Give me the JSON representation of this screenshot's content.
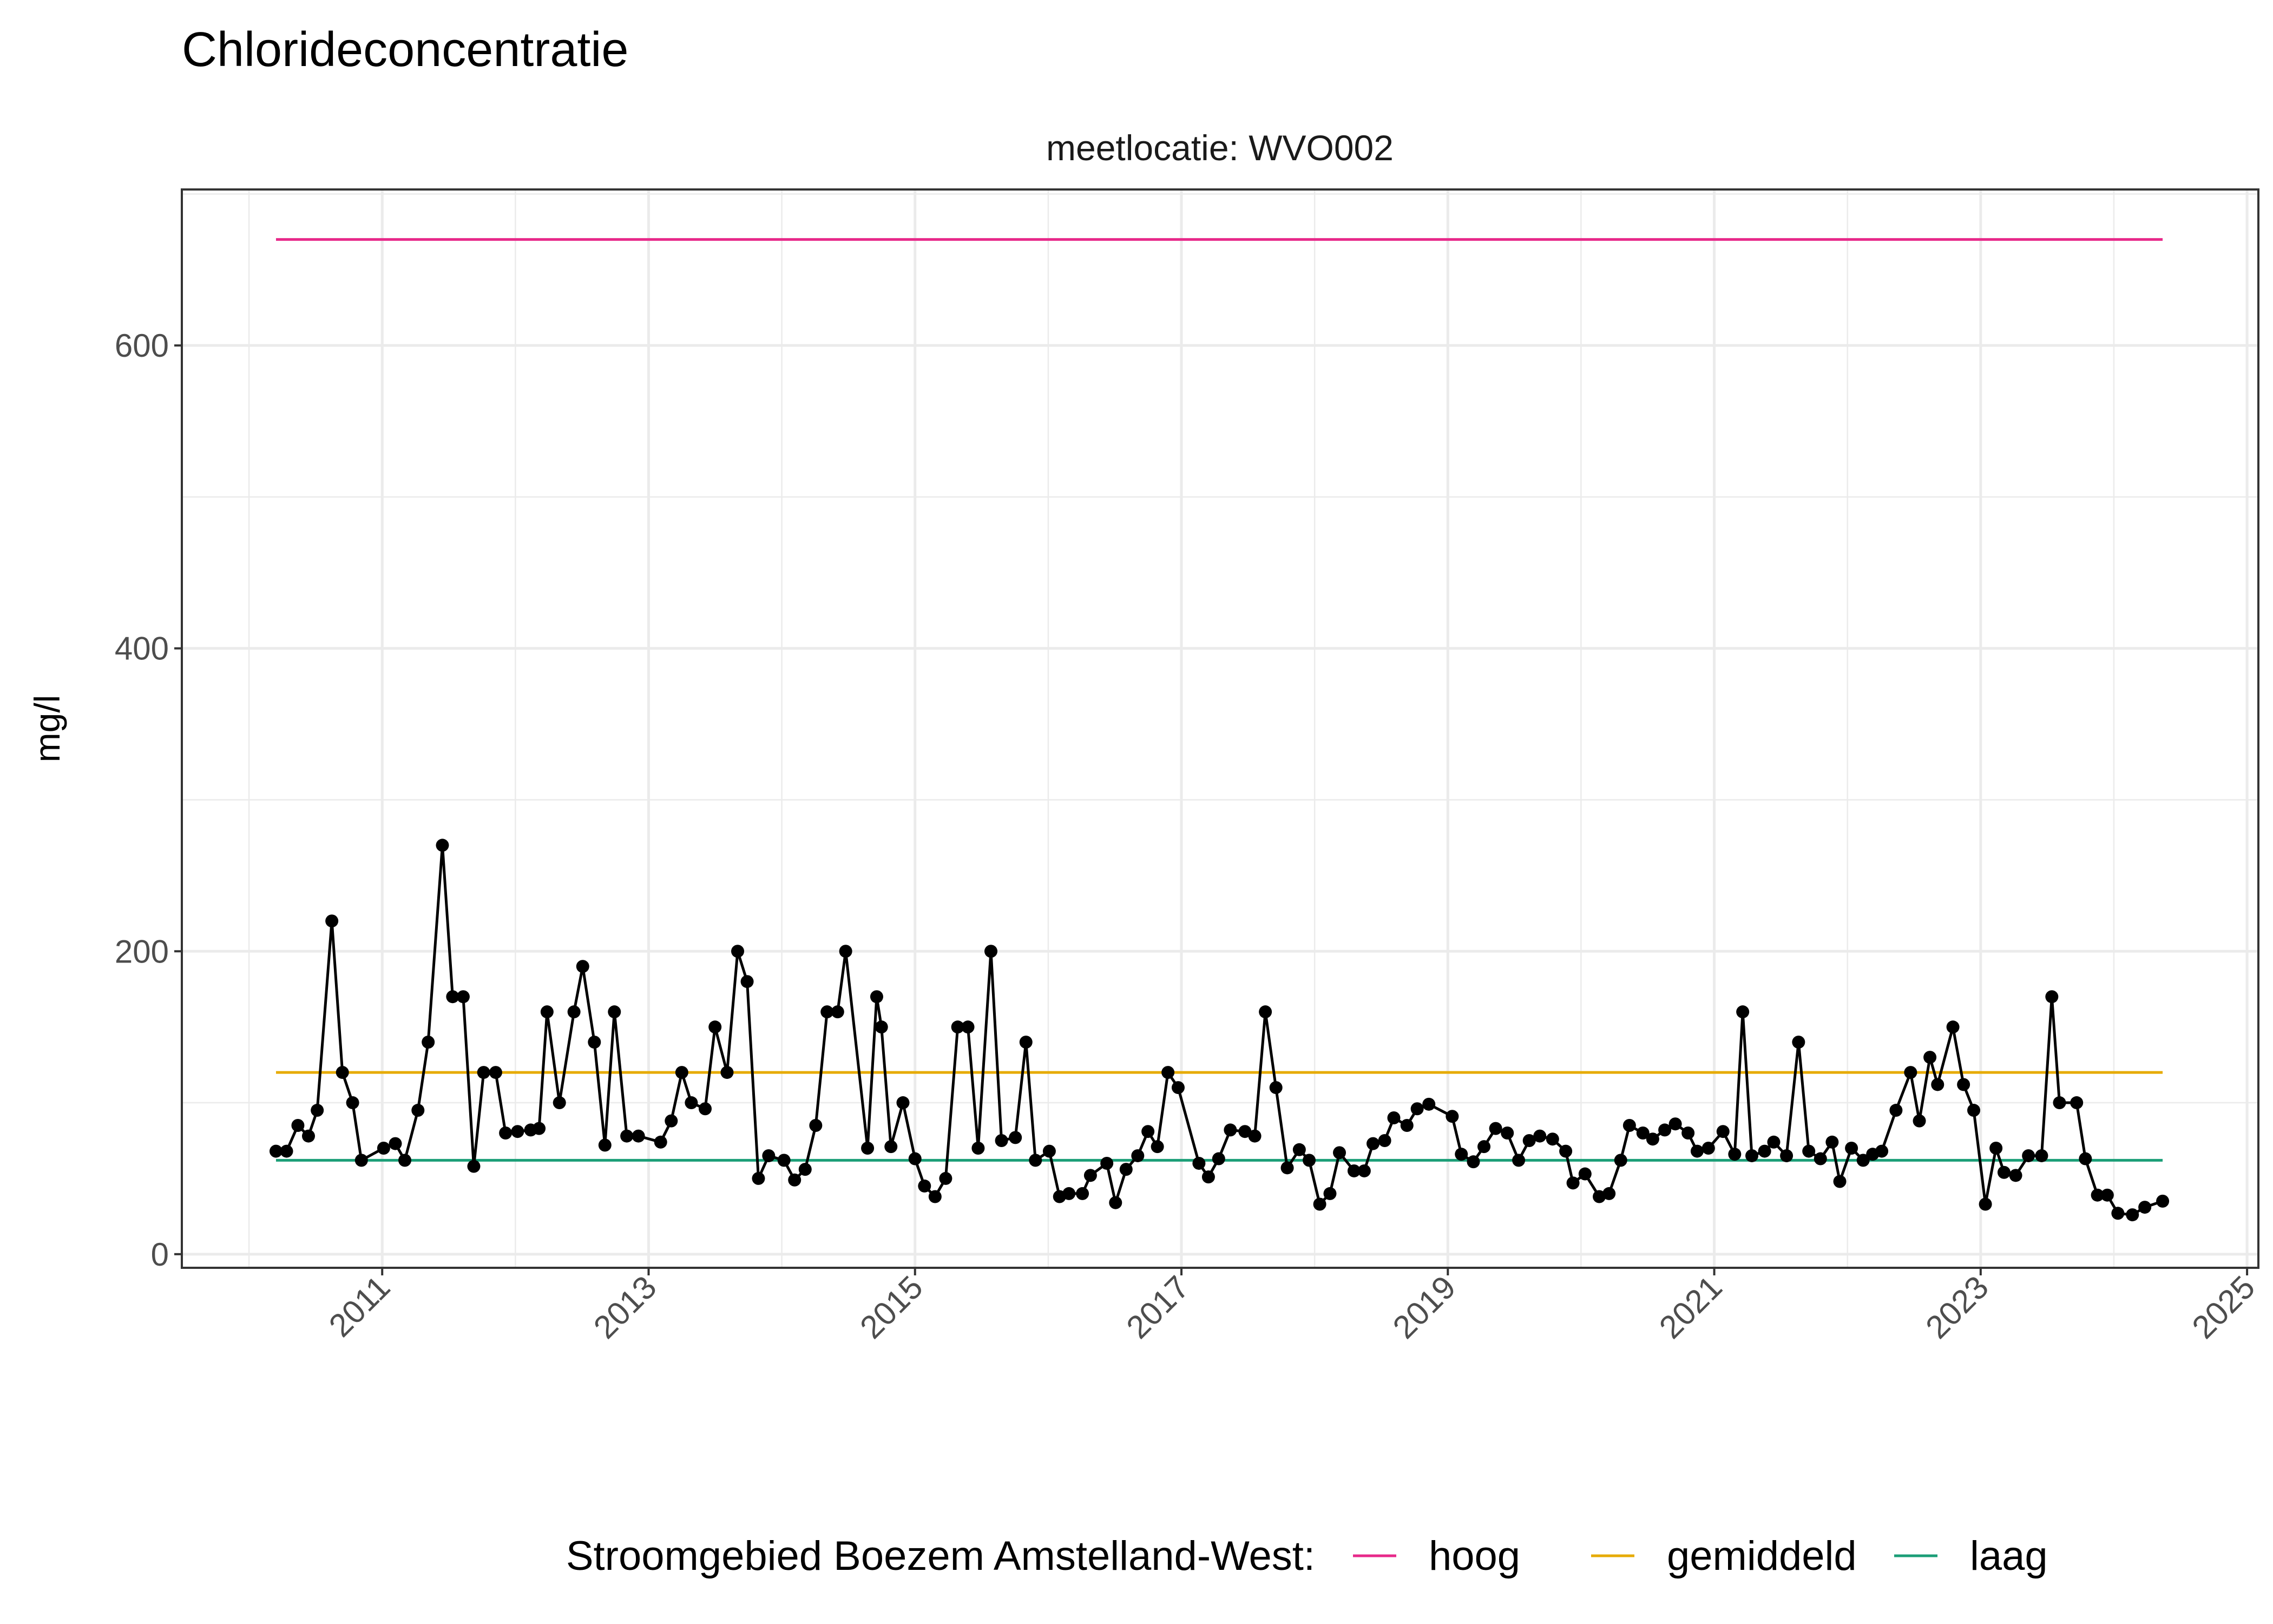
{
  "chart_data": {
    "type": "line",
    "title": "Chlorideconcentratie",
    "facet_label": "meetlocatie: WVO002",
    "xlabel": "",
    "ylabel": "mg/l",
    "ylim": [
      -9,
      703
    ],
    "xlim": [
      "2009-07-01",
      "2025-02-01"
    ],
    "y_ticks": [
      0,
      200,
      400,
      600
    ],
    "x_ticks": [
      "2011",
      "2013",
      "2015",
      "2017",
      "2019",
      "2021",
      "2023",
      "2025"
    ],
    "grid": true,
    "legend_position": "bottom",
    "legend_title": "Stroomgebied Boezem Amstelland-West:",
    "reference_lines": [
      {
        "name": "hoog",
        "value": 670,
        "color": "#E7298A"
      },
      {
        "name": "gemiddeld",
        "value": 120,
        "color": "#E6AB02"
      },
      {
        "name": "laag",
        "value": 62,
        "color": "#1B9E77"
      }
    ],
    "series": [
      {
        "color": "#000000",
        "x": [
          "2010-03-16",
          "2010-04-14",
          "2010-05-15",
          "2010-06-13",
          "2010-07-07",
          "2010-08-16",
          "2010-09-14",
          "2010-10-12",
          "2010-11-05",
          "2011-01-05",
          "2011-02-06",
          "2011-03-04",
          "2011-04-09",
          "2011-05-07",
          "2011-06-15",
          "2011-07-13",
          "2011-08-11",
          "2011-09-09",
          "2011-10-06",
          "2011-11-08",
          "2011-12-05",
          "2012-01-07",
          "2012-02-12",
          "2012-03-06",
          "2012-03-28",
          "2012-05-01",
          "2012-06-10",
          "2012-07-04",
          "2012-08-05",
          "2012-09-03",
          "2012-09-29",
          "2012-11-02",
          "2012-12-04",
          "2013-02-03",
          "2013-03-04",
          "2013-04-02",
          "2013-04-28",
          "2013-06-05",
          "2013-07-02",
          "2013-08-04",
          "2013-09-02",
          "2013-09-28",
          "2013-10-29",
          "2013-11-26",
          "2014-01-07",
          "2014-02-05",
          "2014-03-06",
          "2014-04-04",
          "2014-05-05",
          "2014-06-03",
          "2014-06-25",
          "2014-08-24",
          "2014-09-18",
          "2014-10-01",
          "2014-10-27",
          "2014-11-29",
          "2015-01-01",
          "2015-01-27",
          "2015-02-25",
          "2015-03-26",
          "2015-04-28",
          "2015-05-26",
          "2015-06-23",
          "2015-07-28",
          "2015-08-26",
          "2015-10-03",
          "2015-11-01",
          "2015-11-27",
          "2016-01-04",
          "2016-02-01",
          "2016-02-27",
          "2016-04-04",
          "2016-04-26",
          "2016-06-10",
          "2016-07-04",
          "2016-08-02",
          "2016-09-03",
          "2016-10-01",
          "2016-10-27",
          "2016-11-25",
          "2016-12-23",
          "2017-02-18",
          "2017-03-16",
          "2017-04-13",
          "2017-05-15",
          "2017-06-24",
          "2017-07-21",
          "2017-08-19",
          "2017-09-17",
          "2017-10-18",
          "2017-11-20",
          "2017-12-17",
          "2018-01-15",
          "2018-02-12",
          "2018-03-10",
          "2018-04-19",
          "2018-05-17",
          "2018-06-10",
          "2018-07-12",
          "2018-08-06",
          "2018-09-11",
          "2018-10-09",
          "2018-11-10",
          "2019-01-13",
          "2019-02-07",
          "2019-03-12",
          "2019-04-10",
          "2019-05-12",
          "2019-06-13",
          "2019-07-14",
          "2019-08-12",
          "2019-09-10",
          "2019-10-15",
          "2019-11-20",
          "2019-12-10",
          "2020-01-12",
          "2020-02-20",
          "2020-03-18",
          "2020-04-19",
          "2020-05-13",
          "2020-06-19",
          "2020-07-16",
          "2020-08-18",
          "2020-09-16",
          "2020-10-21",
          "2020-11-15",
          "2020-12-16",
          "2021-01-25",
          "2021-02-26",
          "2021-03-20",
          "2021-04-14",
          "2021-05-19",
          "2021-06-13",
          "2021-07-18",
          "2021-08-20",
          "2021-09-17",
          "2021-10-19",
          "2021-11-20",
          "2021-12-11",
          "2022-01-12",
          "2022-02-13",
          "2022-03-11",
          "2022-04-05",
          "2022-05-14",
          "2022-06-23",
          "2022-07-17",
          "2022-08-15",
          "2022-09-05",
          "2022-10-17",
          "2022-11-15",
          "2022-12-13",
          "2023-01-14",
          "2023-02-12",
          "2023-03-06",
          "2023-04-07",
          "2023-05-12",
          "2023-06-17",
          "2023-07-15",
          "2023-08-05",
          "2023-09-21",
          "2023-10-15",
          "2023-11-17",
          "2023-12-14",
          "2024-01-12",
          "2024-02-21",
          "2024-03-26",
          "2024-05-14"
        ],
        "y": [
          68,
          68,
          85,
          78,
          95,
          220,
          120,
          100,
          62,
          70,
          73,
          62,
          95,
          140,
          270,
          170,
          170,
          58,
          120,
          120,
          80,
          81,
          82,
          83,
          160,
          100,
          160,
          190,
          140,
          72,
          160,
          78,
          78,
          74,
          88,
          120,
          100,
          96,
          150,
          120,
          200,
          180,
          50,
          65,
          62,
          49,
          56,
          85,
          160,
          160,
          200,
          70,
          170,
          150,
          71,
          100,
          63,
          45,
          38,
          50,
          150,
          150,
          70,
          200,
          75,
          77,
          140,
          62,
          68,
          38,
          40,
          40,
          52,
          60,
          34,
          56,
          65,
          81,
          71,
          120,
          110,
          60,
          51,
          63,
          82,
          81,
          78,
          160,
          110,
          57,
          69,
          62,
          33,
          40,
          67,
          55,
          55,
          73,
          75,
          90,
          85,
          96,
          99,
          91,
          66,
          61,
          71,
          83,
          80,
          62,
          75,
          78,
          76,
          68,
          47,
          53,
          38,
          40,
          62,
          85,
          80,
          76,
          82,
          86,
          80,
          68,
          70,
          81,
          66,
          160,
          65,
          68,
          74,
          65,
          140,
          68,
          63,
          74,
          48,
          70,
          62,
          66,
          68,
          95,
          120,
          88,
          130,
          112,
          150,
          112,
          95,
          33,
          70,
          54,
          52,
          65,
          65,
          170,
          100,
          100,
          63,
          39,
          39,
          27,
          26,
          31,
          35
        ]
      }
    ]
  }
}
